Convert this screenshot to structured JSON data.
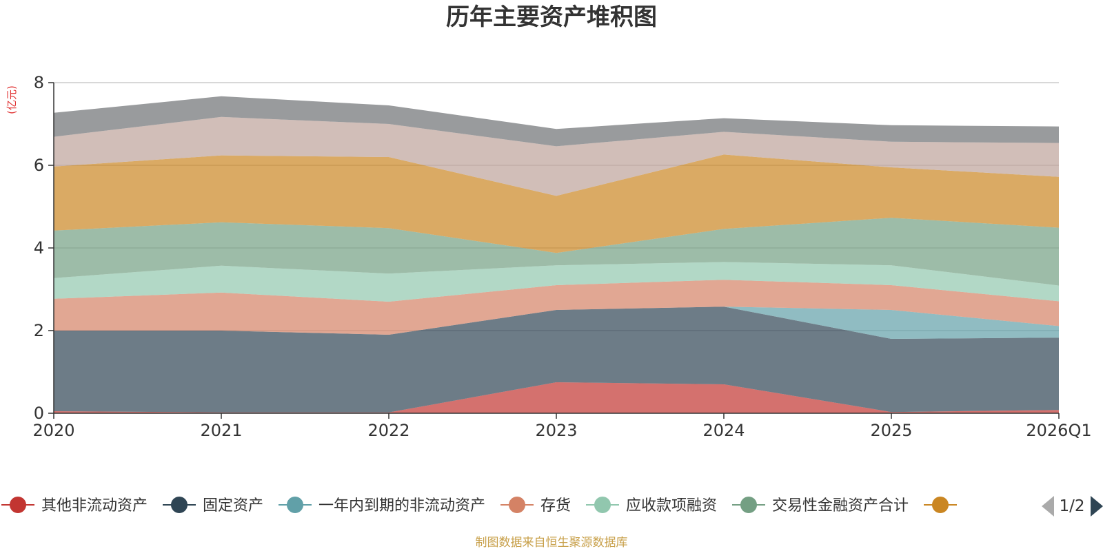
{
  "chart_data": {
    "type": "area",
    "stacked": true,
    "title": "历年主要资产堆积图",
    "unit_label": "(亿元)",
    "categories": [
      "2020",
      "2021",
      "2022",
      "2023",
      "2024",
      "2025",
      "2026Q1"
    ],
    "ylim": [
      0,
      8
    ],
    "yticks": [
      0,
      2,
      4,
      6,
      8
    ],
    "grid": true,
    "series": [
      {
        "name": "其他非流动资产",
        "color": "#c23531",
        "legend_color": "#c23531",
        "values": [
          0.05,
          0.02,
          0.02,
          0.75,
          0.7,
          0.03,
          0.08
        ]
      },
      {
        "name": "固定资产",
        "color": "#2f4554",
        "legend_color": "#2f4554",
        "values": [
          1.95,
          1.98,
          1.88,
          1.75,
          1.88,
          1.77,
          1.75
        ]
      },
      {
        "name": "一年内到期的非流动资产",
        "color": "#61a0a8",
        "legend_color": "#61a0a8",
        "values": [
          0.0,
          0.0,
          0.0,
          0.0,
          0.0,
          0.7,
          0.28
        ]
      },
      {
        "name": "存货",
        "color": "#d48265",
        "legend_color": "#d48265",
        "values": [
          0.77,
          0.92,
          0.8,
          0.6,
          0.65,
          0.6,
          0.6
        ]
      },
      {
        "name": "应收款项融资",
        "color": "#91c7ae",
        "legend_color": "#91c7ae",
        "values": [
          0.5,
          0.65,
          0.68,
          0.48,
          0.43,
          0.48,
          0.38
        ]
      },
      {
        "name": "交易性金融资产合计",
        "color": "#749f83",
        "legend_color": "#749f83",
        "values": [
          1.15,
          1.05,
          1.1,
          0.3,
          0.8,
          1.15,
          1.4
        ]
      },
      {
        "name": "",
        "color": "#ca8622",
        "legend_color": "#ca8622",
        "values": [
          1.55,
          1.62,
          1.72,
          1.38,
          1.8,
          1.22,
          1.23
        ]
      },
      {
        "name": "",
        "color": "#bda29a",
        "legend_color": "#bda29a",
        "values": [
          0.72,
          0.93,
          0.8,
          1.2,
          0.55,
          0.62,
          0.82
        ]
      },
      {
        "name": "",
        "color": "#6e7074",
        "legend_color": "#6e7074",
        "values": [
          0.58,
          0.5,
          0.45,
          0.42,
          0.33,
          0.4,
          0.4
        ]
      }
    ],
    "legend": {
      "visible_series": 7,
      "page": "1/2",
      "position": "bottom"
    },
    "source": "制图数据来自恒生聚源数据库"
  }
}
